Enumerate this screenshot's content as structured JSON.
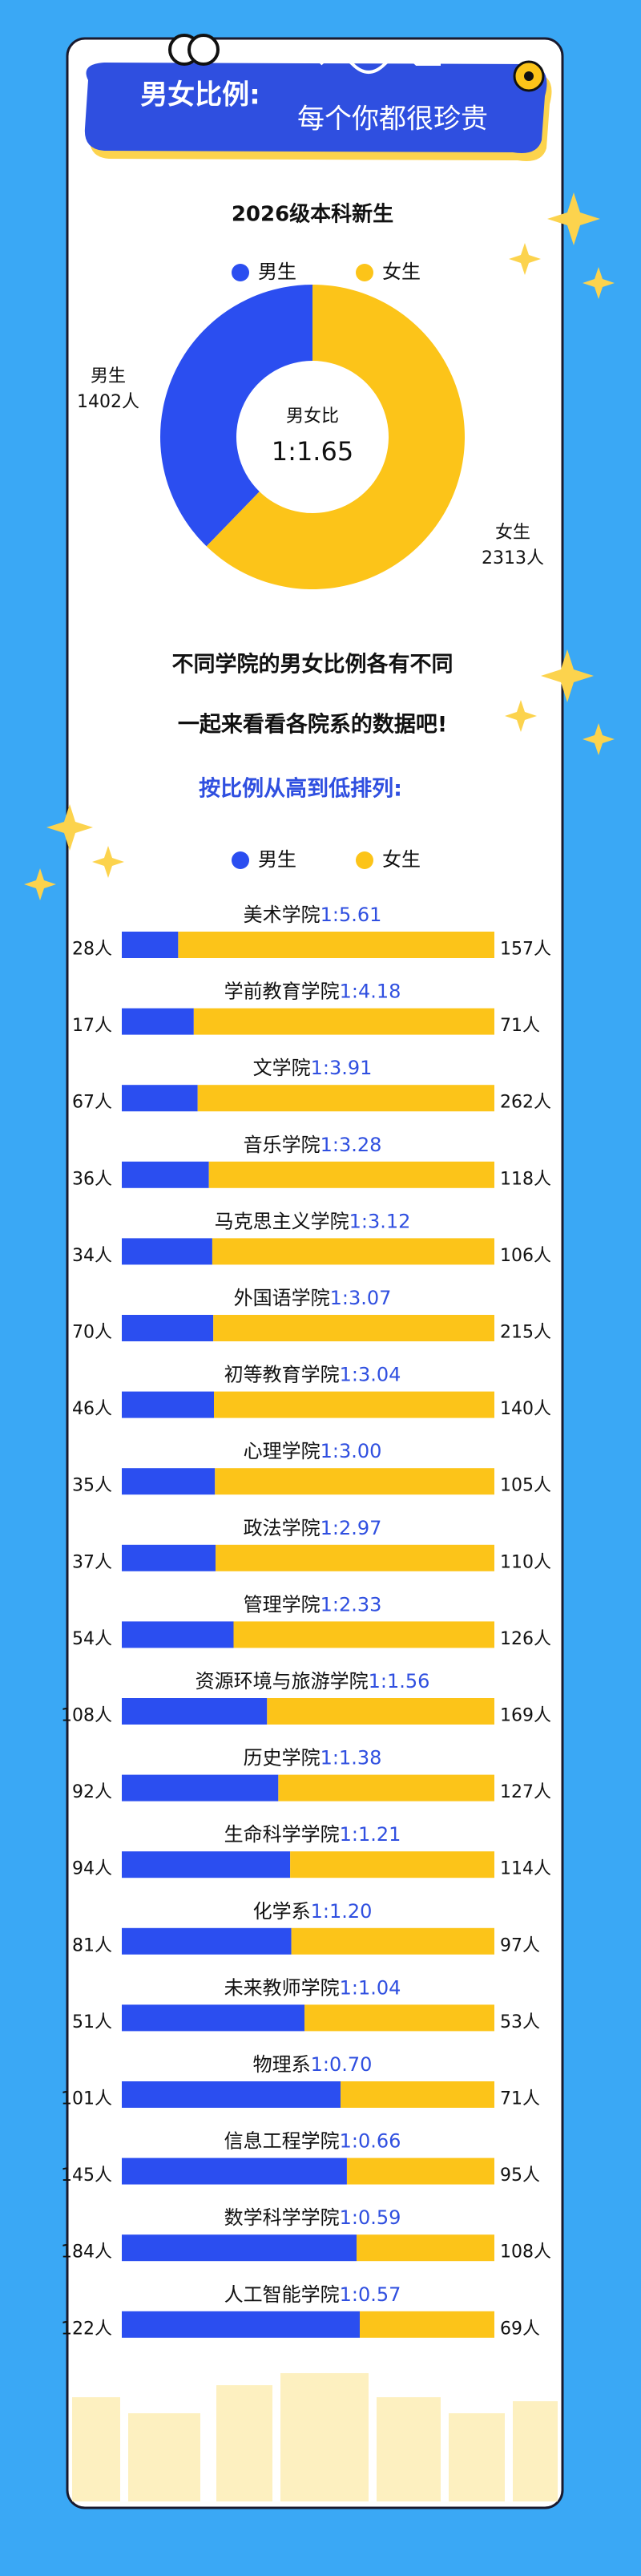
{
  "header": {
    "title": "男女比例:",
    "subtitle": "每个你都很珍贵"
  },
  "intro": [
    "不同学院的男女比例各有不同",
    "一起来看看各院系的数据吧!"
  ],
  "sort_note": "按比例从高到低排列:",
  "chart_data": [
    {
      "type": "pie",
      "title": "2026级本科新生",
      "categories": [
        "男生",
        "女生"
      ],
      "values": [
        1402,
        2313
      ],
      "value_labels": [
        "1402人",
        "2313人"
      ],
      "colors": [
        "#2b4ef0",
        "#fcc419"
      ],
      "center_label": "男女比",
      "center_value": "1:1.65",
      "donut": true
    },
    {
      "type": "bar",
      "orientation": "horizontal",
      "stacked": "percent",
      "categories": [
        "美术学院",
        "学前教育学院",
        "文学院",
        "音乐学院",
        "马克思主义学院",
        "外国语学院",
        "初等教育学院",
        "心理学院",
        "政法学院",
        "管理学院",
        "资源环境与旅游学院",
        "历史学院",
        "生命科学学院",
        "化学系",
        "未来教师学院",
        "物理系",
        "信息工程学院",
        "数学科学学院",
        "人工智能学院"
      ],
      "ratios": [
        "1:5.61",
        "1:4.18",
        "1:3.91",
        "1:3.28",
        "1:3.12",
        "1:3.07",
        "1:3.04",
        "1:3.00",
        "1:2.97",
        "1:2.33",
        "1:1.56",
        "1:1.38",
        "1:1.21",
        "1:1.20",
        "1:1.04",
        "1:0.70",
        "1:0.66",
        "1:0.59",
        "1:0.57"
      ],
      "series": [
        {
          "name": "男生",
          "color": "#2b4ef0",
          "values": [
            28,
            17,
            67,
            36,
            34,
            70,
            46,
            35,
            37,
            54,
            108,
            92,
            94,
            81,
            51,
            101,
            145,
            184,
            122
          ],
          "value_labels": [
            "28人",
            "17人",
            "67人",
            "36人",
            "34人",
            "70人",
            "46人",
            "35人",
            "37人",
            "54人",
            "108人",
            "92人",
            "94人",
            "81人",
            "51人",
            "101人",
            "145人",
            "184人",
            "122人"
          ]
        },
        {
          "name": "女生",
          "color": "#fcc419",
          "values": [
            157,
            71,
            262,
            118,
            106,
            215,
            140,
            105,
            110,
            126,
            169,
            127,
            114,
            97,
            53,
            71,
            95,
            108,
            69
          ],
          "value_labels": [
            "157人",
            "71人",
            "262人",
            "118人",
            "106人",
            "215人",
            "140人",
            "105人",
            "110人",
            "126人",
            "169人",
            "127人",
            "114人",
            "97人",
            "53人",
            "71人",
            "95人",
            "108人",
            "69人"
          ]
        }
      ]
    }
  ]
}
